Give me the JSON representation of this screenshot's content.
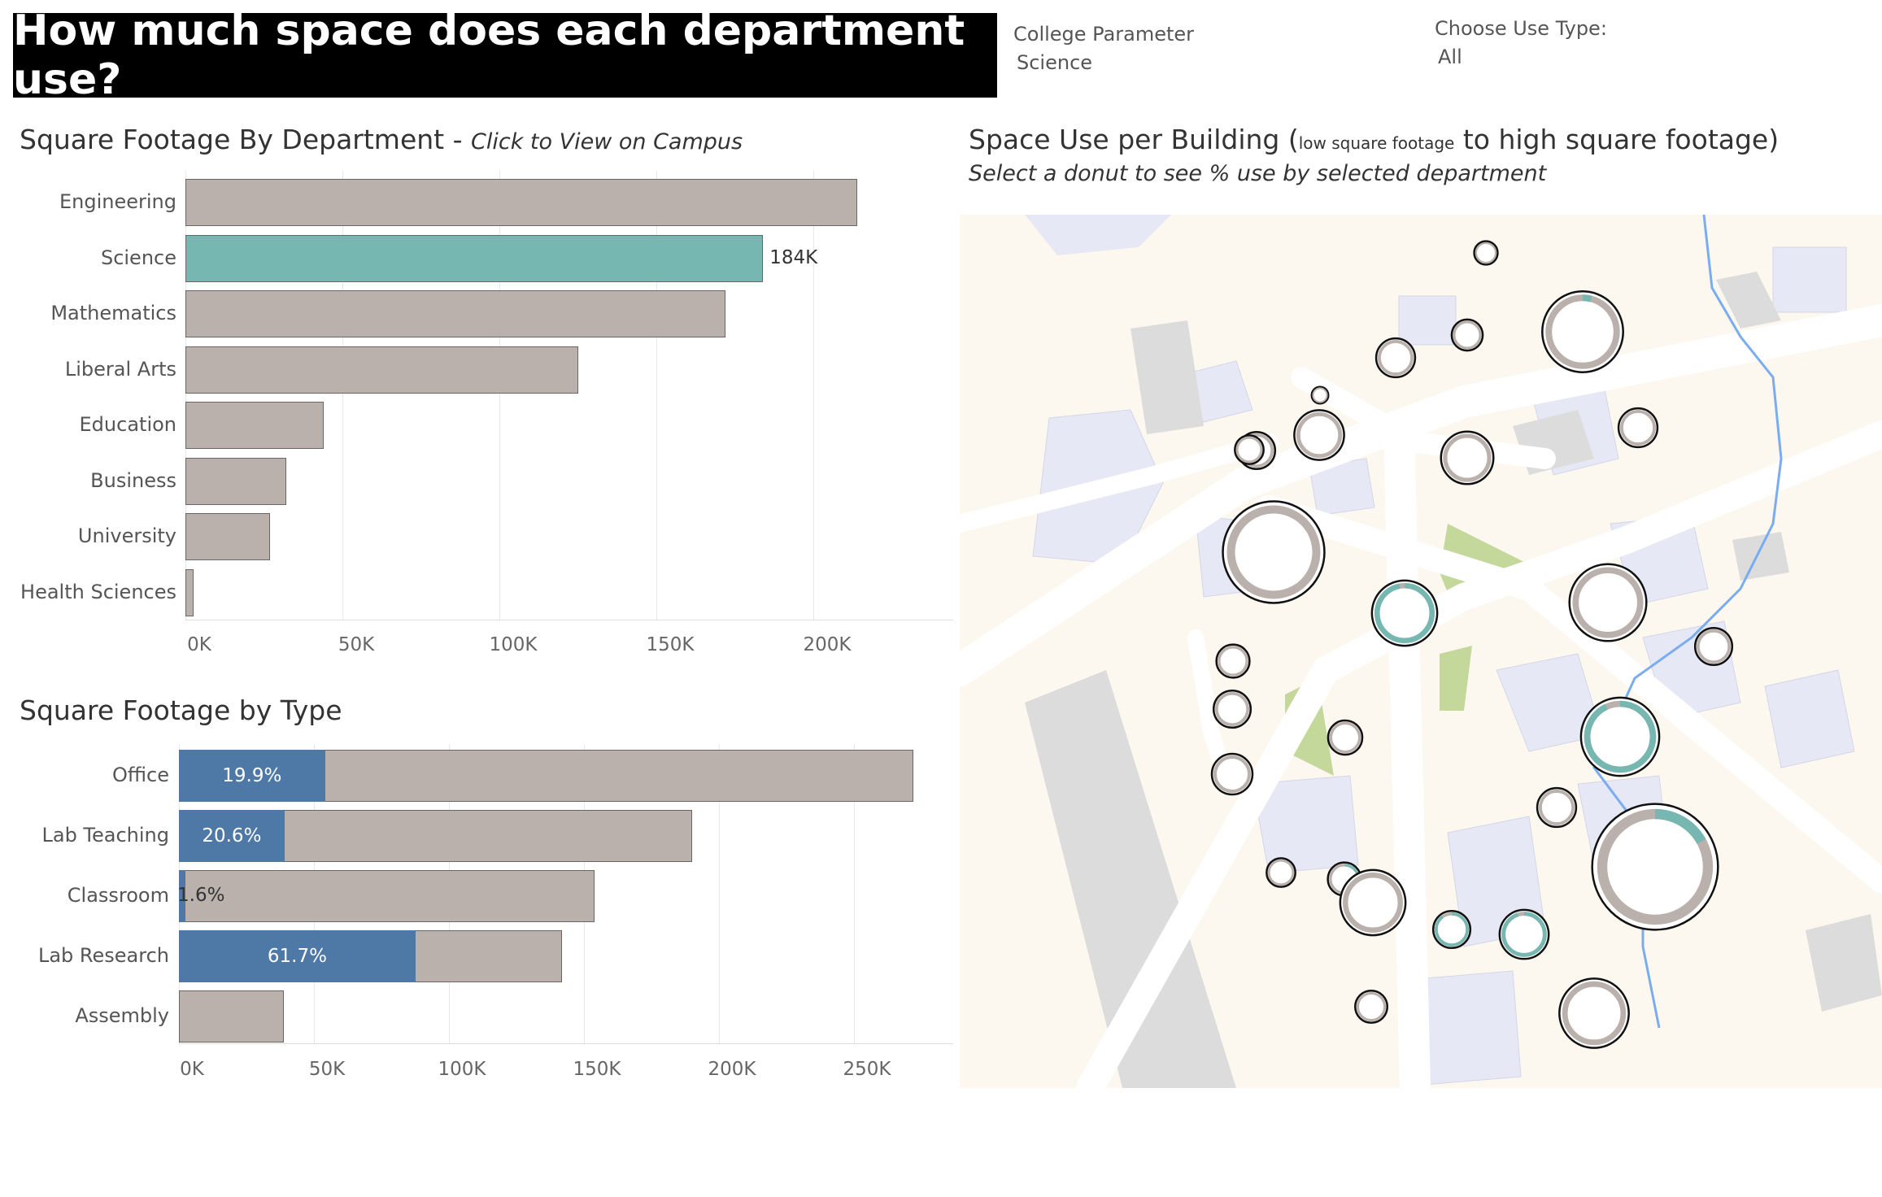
{
  "header": {
    "title": "How much space does each department use?"
  },
  "college_param": {
    "label": "College Parameter",
    "value": "Science"
  },
  "use_type": {
    "label": "Choose Use Type:",
    "value": "All"
  },
  "dept_chart": {
    "title": "Square Footage By Department - ",
    "title_hint": "Click to View on Campus"
  },
  "type_chart": {
    "title": "Square Footage by Type"
  },
  "map_panel": {
    "title_start": "Space Use per Building (",
    "title_small": "low square footage",
    "title_mid": " to ",
    "title_end": "high square footage)",
    "subtitle": "Select a donut to see % use by selected department"
  },
  "colors": {
    "bar": "#bab0ac",
    "highlight": "#76b7b2",
    "dept_share": "#4e79a7",
    "banner": "#000000"
  },
  "chart_data": [
    {
      "type": "bar",
      "orientation": "horizontal",
      "title": "Square Footage By Department",
      "categories": [
        "Engineering",
        "Science",
        "Mathematics",
        "Liberal Arts",
        "Education",
        "Business",
        "University",
        "Health Sciences"
      ],
      "values": [
        214000,
        184000,
        172000,
        125000,
        44000,
        32000,
        27000,
        2500
      ],
      "highlighted": "Science",
      "data_labels": {
        "Science": "184K"
      },
      "xlim": [
        0,
        240000
      ],
      "x_ticks": [
        "0K",
        "50K",
        "100K",
        "150K",
        "200K"
      ],
      "x_tick_values": [
        0,
        50000,
        100000,
        150000,
        200000
      ],
      "grid": true
    },
    {
      "type": "bar",
      "orientation": "horizontal",
      "title": "Square Footage by Type",
      "categories": [
        "Office",
        "Lab Teaching",
        "Classroom",
        "Lab Research",
        "Assembly"
      ],
      "series": [
        {
          "name": "Total",
          "values": [
            272000,
            190000,
            154000,
            142000,
            39000
          ]
        },
        {
          "name": "Science share",
          "values": [
            54100,
            39100,
            2500,
            87600,
            0
          ]
        }
      ],
      "share_labels": [
        "19.9%",
        "20.6%",
        "1.6%",
        "61.7%",
        ""
      ],
      "xlim": [
        0,
        285000
      ],
      "x_ticks": [
        "0K",
        "50K",
        "100K",
        "150K",
        "200K",
        "250K"
      ],
      "x_tick_values": [
        0,
        50000,
        100000,
        150000,
        200000,
        250000
      ],
      "grid": true
    }
  ],
  "buildings": [
    {
      "sqft": 8,
      "share": 0
    },
    {
      "sqft": 14,
      "share": 0
    },
    {
      "sqft": 95,
      "share": 0.04
    },
    {
      "sqft": 22,
      "share": 0
    },
    {
      "sqft": 4,
      "share": 0
    },
    {
      "sqft": 20,
      "share": 0
    },
    {
      "sqft": 36,
      "share": 0
    },
    {
      "sqft": 12,
      "share": 0
    },
    {
      "sqft": 40,
      "share": 0
    },
    {
      "sqft": 22,
      "share": 0
    },
    {
      "sqft": 150,
      "share": 0
    },
    {
      "sqft": 62,
      "share": 0.97
    },
    {
      "sqft": 86,
      "share": 0
    },
    {
      "sqft": 16,
      "share": 0
    },
    {
      "sqft": 20,
      "share": 0
    },
    {
      "sqft": 17,
      "share": 0
    },
    {
      "sqft": 24,
      "share": 0
    },
    {
      "sqft": 89,
      "share": 0.93
    },
    {
      "sqft": 20,
      "share": 0
    },
    {
      "sqft": 22,
      "share": 0
    },
    {
      "sqft": 12,
      "share": 0
    },
    {
      "sqft": 16,
      "share": 0.25
    },
    {
      "sqft": 62,
      "share": 0
    },
    {
      "sqft": 20,
      "share": 0.9
    },
    {
      "sqft": 35,
      "share": 0.95
    },
    {
      "sqft": 230,
      "share": 0.17
    },
    {
      "sqft": 15,
      "share": 0
    },
    {
      "sqft": 70,
      "share": 0
    }
  ]
}
